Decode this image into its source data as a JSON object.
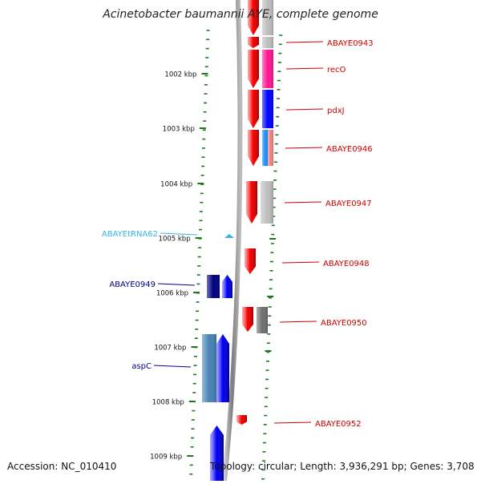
{
  "title": "Acinetobacter baumannii AYE, complete genome",
  "footer": {
    "accession": "Accession: NC_010410",
    "summary": "Topology: circular; Length: 3,936,291 bp; Genes: 3,708"
  },
  "colors": {
    "forward_cds": "#ff0000",
    "reverse_cds": "#0000ff",
    "trna": "#33b5e5",
    "tick": "#1a7a1a",
    "backbone": "#888888",
    "label_red": "#cc0000",
    "label_blue": "#00008b",
    "label_cyan": "#33b5e5"
  },
  "ticks": [
    "1002 kbp",
    "1003 kbp",
    "1004 kbp",
    "1005 kbp",
    "1006 kbp",
    "1007 kbp",
    "1008 kbp",
    "1009 kbp"
  ],
  "features": [
    {
      "name": "ABAYE0943",
      "strand": "forward",
      "kind": "CDS",
      "cog_color": "#bdbdbd"
    },
    {
      "name": "recO",
      "strand": "forward",
      "kind": "CDS",
      "cog_color": "#ff1493"
    },
    {
      "name": "pdxJ",
      "strand": "forward",
      "kind": "CDS",
      "cog_color": "#0000ff"
    },
    {
      "name": "ABAYE0946",
      "strand": "forward",
      "kind": "CDS",
      "cog_color": "#1e90ff"
    },
    {
      "name": "ABAYE0947",
      "strand": "forward",
      "kind": "CDS",
      "cog_color": "#bdbdbd"
    },
    {
      "name": "ABAYEtRNA62",
      "strand": "reverse",
      "kind": "tRNA",
      "cog_color": ""
    },
    {
      "name": "ABAYE0948",
      "strand": "forward",
      "kind": "CDS",
      "cog_color": ""
    },
    {
      "name": "ABAYE0949",
      "strand": "reverse",
      "kind": "CDS",
      "cog_color": "#000080"
    },
    {
      "name": "ABAYE0950",
      "strand": "forward",
      "kind": "CDS",
      "cog_color": "#6e6e6e"
    },
    {
      "name": "aspC",
      "strand": "reverse",
      "kind": "CDS",
      "cog_color": "#4682b4"
    },
    {
      "name": "ABAYE0952",
      "strand": "forward",
      "kind": "CDS",
      "cog_color": ""
    },
    {
      "name": "",
      "strand": "reverse",
      "kind": "CDS",
      "cog_color": ""
    }
  ]
}
